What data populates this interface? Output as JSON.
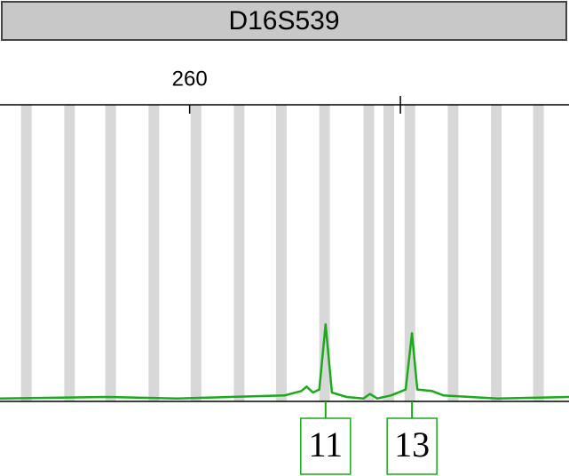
{
  "chart_data": {
    "type": "line",
    "title": "D16S539",
    "xlim": [
      242,
      296
    ],
    "xticks": [
      {
        "value": 260,
        "label": "260"
      },
      {
        "value": 280,
        "label": null
      }
    ],
    "ylim": [
      0,
      100
    ],
    "allele_bins": [
      244.5,
      248.6,
      252.5,
      256.6,
      260.6,
      264.7,
      268.7,
      272.8,
      277.0,
      278.9,
      280.9,
      285.0,
      289.1,
      293.1
    ],
    "series": [
      {
        "color": "#1aaa1a",
        "x": [
          242.0,
          252.1,
          258.8,
          269.0,
          270.6,
          271.1,
          271.7,
          272.3,
          272.9,
          273.5,
          274.9,
          276.5,
          277.1,
          277.8,
          279.1,
          280.5,
          281.1,
          281.6,
          283.0,
          284.1,
          289.2,
          296.0
        ],
        "values": [
          1,
          1.5,
          1,
          2,
          3.5,
          5,
          3,
          4,
          26,
          3,
          1.5,
          1,
          2.5,
          1,
          2,
          4,
          23,
          4,
          3.5,
          2,
          1,
          1.5
        ]
      }
    ],
    "alleles": [
      {
        "label": "11",
        "x": 272.9
      },
      {
        "label": "13",
        "x": 281.1
      }
    ]
  }
}
